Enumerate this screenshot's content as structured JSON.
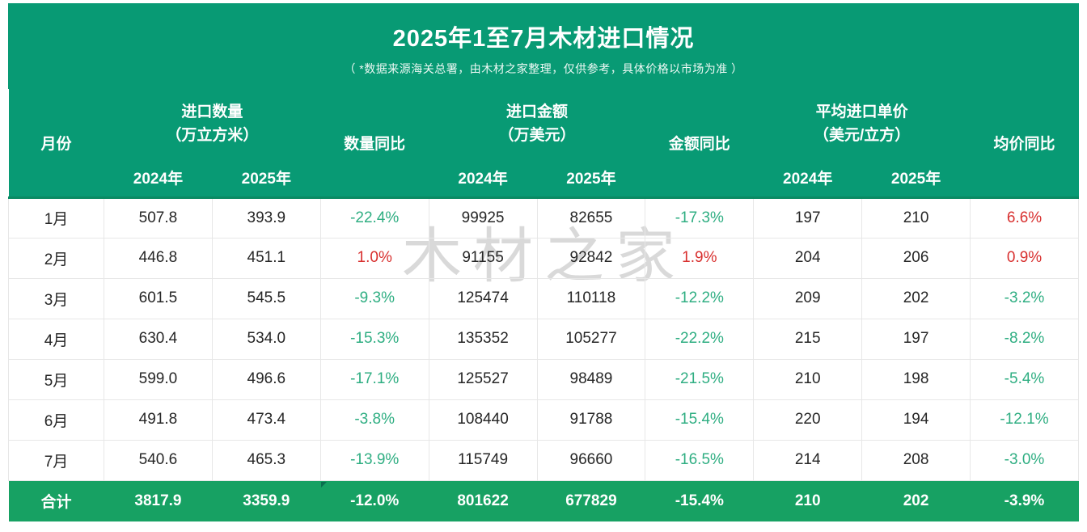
{
  "header": {
    "title": "2025年1至7月木材进口情况",
    "subtitle": "（ *数据来源海关总署，由木材之家整理，仅供参考，具体价格以市场为准 ）"
  },
  "watermark": "木材之家",
  "colors": {
    "panel_green": "#089a74",
    "total_row_green": "#17a163",
    "header_divider": "#0a8a63",
    "increase_red": "#d8302f",
    "decrease_green": "#2fae82",
    "text_dark": "#262626",
    "row_border": "#e7e7e7",
    "watermark_gray": "#d9d9d9"
  },
  "chart_data": {
    "type": "table",
    "title": "2025年1至7月木材进口情况",
    "columns": {
      "month": "月份",
      "quantity_group_line1": "进口数量",
      "quantity_group_line2": "（万立方米）",
      "quantity_yoy": "数量同比",
      "amount_group_line1": "进口金额",
      "amount_group_line2": "（万美元）",
      "amount_yoy": "金额同比",
      "price_group_line1": "平均进口单价",
      "price_group_line2": "（美元/立方）",
      "price_yoy": "均价同比",
      "year_2024": "2024年",
      "year_2025": "2025年"
    },
    "column_order": [
      "month",
      "qty_2024",
      "qty_2025",
      "qty_yoy",
      "amt_2024",
      "amt_2025",
      "amt_yoy",
      "price_2024",
      "price_2025",
      "price_yoy"
    ],
    "yoy_columns": [
      "qty_yoy",
      "amt_yoy",
      "price_yoy"
    ],
    "rows": [
      {
        "month": "1月",
        "qty_2024": "507.8",
        "qty_2025": "393.9",
        "qty_yoy": "-22.4%",
        "amt_2024": "99925",
        "amt_2025": "82655",
        "amt_yoy": "-17.3%",
        "price_2024": "197",
        "price_2025": "210",
        "price_yoy": "6.6%"
      },
      {
        "month": "2月",
        "qty_2024": "446.8",
        "qty_2025": "451.1",
        "qty_yoy": "1.0%",
        "amt_2024": "91155",
        "amt_2025": "92842",
        "amt_yoy": "1.9%",
        "price_2024": "204",
        "price_2025": "206",
        "price_yoy": "0.9%"
      },
      {
        "month": "3月",
        "qty_2024": "601.5",
        "qty_2025": "545.5",
        "qty_yoy": "-9.3%",
        "amt_2024": "125474",
        "amt_2025": "110118",
        "amt_yoy": "-12.2%",
        "price_2024": "209",
        "price_2025": "202",
        "price_yoy": "-3.2%"
      },
      {
        "month": "4月",
        "qty_2024": "630.4",
        "qty_2025": "534.0",
        "qty_yoy": "-15.3%",
        "amt_2024": "135352",
        "amt_2025": "105277",
        "amt_yoy": "-22.2%",
        "price_2024": "215",
        "price_2025": "197",
        "price_yoy": "-8.2%"
      },
      {
        "month": "5月",
        "qty_2024": "599.0",
        "qty_2025": "496.6",
        "qty_yoy": "-17.1%",
        "amt_2024": "125527",
        "amt_2025": "98489",
        "amt_yoy": "-21.5%",
        "price_2024": "210",
        "price_2025": "198",
        "price_yoy": "-5.4%"
      },
      {
        "month": "6月",
        "qty_2024": "491.8",
        "qty_2025": "473.4",
        "qty_yoy": "-3.8%",
        "amt_2024": "108440",
        "amt_2025": "91788",
        "amt_yoy": "-15.4%",
        "price_2024": "220",
        "price_2025": "194",
        "price_yoy": "-12.1%"
      },
      {
        "month": "7月",
        "qty_2024": "540.6",
        "qty_2025": "465.3",
        "qty_yoy": "-13.9%",
        "amt_2024": "115749",
        "amt_2025": "96660",
        "amt_yoy": "-16.5%",
        "price_2024": "214",
        "price_2025": "208",
        "price_yoy": "-3.0%"
      }
    ],
    "total": {
      "month": "合计",
      "qty_2024": "3817.9",
      "qty_2025": "3359.9",
      "qty_yoy": "-12.0%",
      "amt_2024": "801622",
      "amt_2025": "677829",
      "amt_yoy": "-15.4%",
      "price_2024": "210",
      "price_2025": "202",
      "price_yoy": "-3.9%"
    }
  }
}
